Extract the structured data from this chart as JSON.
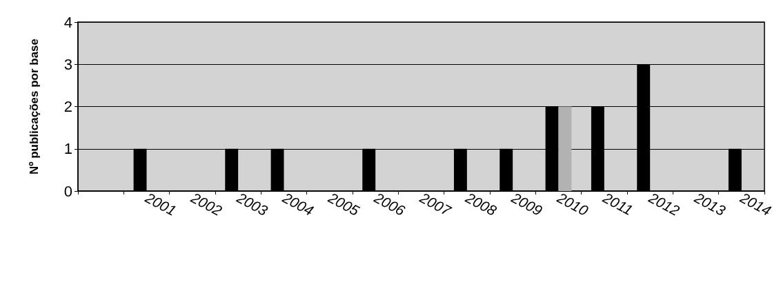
{
  "chart_data": {
    "type": "bar",
    "ylabel": "Nº publicações por base",
    "categories": [
      null,
      "2001",
      "2002",
      "2003",
      "2004",
      "2005",
      "2006",
      "2007",
      "2008",
      "2009",
      "2010",
      "2011",
      "2012",
      "2013",
      "2014"
    ],
    "series": [
      {
        "color": "#000000",
        "values": [
          0,
          1,
          0,
          1,
          1,
          0,
          1,
          0,
          1,
          1,
          2,
          2,
          3,
          0,
          1
        ]
      },
      {
        "color": "#b2b2b2",
        "values": [
          0,
          0,
          0,
          0,
          0,
          0,
          0,
          0,
          0,
          0,
          2,
          0,
          0,
          0,
          0
        ]
      }
    ],
    "ylim": [
      0,
      4
    ],
    "yticks": [
      0,
      1,
      2,
      3,
      4
    ],
    "grid": "y"
  }
}
